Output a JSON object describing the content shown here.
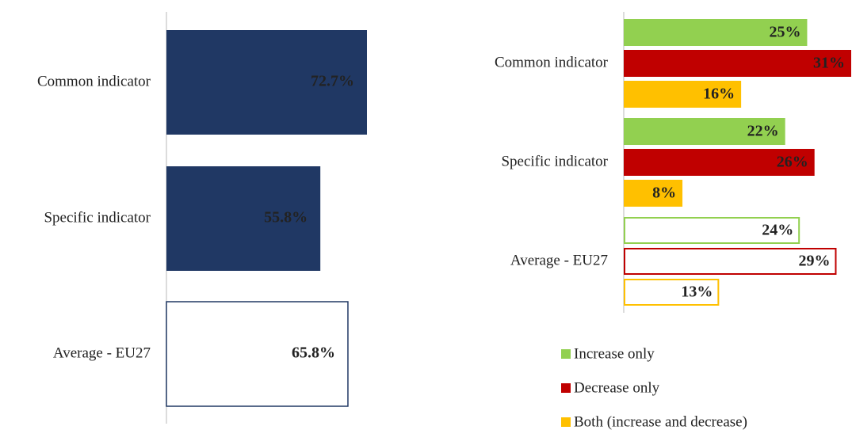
{
  "chart_data": [
    {
      "type": "bar",
      "orientation": "horizontal",
      "categories": [
        "Common indicator",
        "Specific indicator",
        "Average - EU27"
      ],
      "values": [
        72.7,
        55.8,
        65.8
      ],
      "value_labels": [
        "72.7%",
        "55.8%",
        "65.8%"
      ],
      "color": "#203864",
      "xlim": [
        0,
        100
      ]
    },
    {
      "type": "bar",
      "orientation": "horizontal",
      "categories": [
        "Common indicator",
        "Specific indicator",
        "Average - EU27"
      ],
      "series": [
        {
          "name": "Increase only",
          "color": "#92d050",
          "values": [
            25,
            22,
            24
          ],
          "value_labels": [
            "25%",
            "22%",
            "24%"
          ]
        },
        {
          "name": "Decrease only",
          "color": "#c00000",
          "values": [
            31,
            26,
            29
          ],
          "value_labels": [
            "31%",
            "26%",
            "29%"
          ]
        },
        {
          "name": "Both (increase and decrease)",
          "color": "#ffc000",
          "values": [
            16,
            8,
            13
          ],
          "value_labels": [
            "16%",
            "8%",
            "13%"
          ]
        }
      ],
      "xlim": [
        0,
        31
      ],
      "legend": "bottom"
    }
  ]
}
